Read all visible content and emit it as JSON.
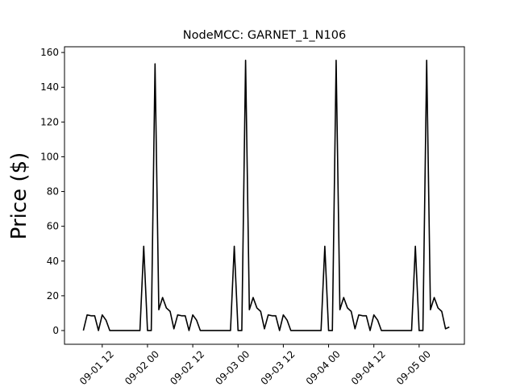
{
  "chart_data": {
    "type": "line",
    "title": "NodeMCC: GARNET_1_N106",
    "y_label": "Price ($)",
    "x": [
      "09-01 07",
      "09-01 08",
      "09-01 09",
      "09-01 10",
      "09-01 11",
      "09-01 12",
      "09-01 13",
      "09-01 14",
      "09-01 22",
      "09-01 23",
      "09-02 00",
      "09-02 01",
      "09-02 02",
      "09-02 03",
      "09-02 04",
      "09-02 05",
      "09-02 06",
      "09-02 07",
      "09-02 08",
      "09-02 09",
      "09-02 10",
      "09-02 11",
      "09-02 12",
      "09-02 13",
      "09-02 14",
      "09-02 22",
      "09-02 23",
      "09-03 00",
      "09-03 01",
      "09-03 02",
      "09-03 03",
      "09-03 04",
      "09-03 05",
      "09-03 06",
      "09-03 07",
      "09-03 08",
      "09-03 09",
      "09-03 10",
      "09-03 11",
      "09-03 12",
      "09-03 13",
      "09-03 14",
      "09-03 22",
      "09-03 23",
      "09-04 00",
      "09-04 01",
      "09-04 02",
      "09-04 03",
      "09-04 04",
      "09-04 05",
      "09-04 06",
      "09-04 07",
      "09-04 08",
      "09-04 09",
      "09-04 10",
      "09-04 11",
      "09-04 12",
      "09-04 13",
      "09-04 14",
      "09-04 22",
      "09-04 23",
      "09-05 00",
      "09-05 01",
      "09-05 02",
      "09-05 03",
      "09-05 04",
      "09-05 05",
      "09-05 06",
      "09-05 07",
      "09-05 08"
    ],
    "series": [
      {
        "color": "#000000",
        "values": [
          0,
          9,
          8.5,
          8.5,
          0,
          9,
          6,
          0,
          0,
          48.5,
          0,
          0,
          153.5,
          12,
          19,
          13,
          11,
          1,
          9,
          8.5,
          8.5,
          0,
          9,
          6,
          0,
          0,
          48.5,
          0,
          0,
          155.5,
          12,
          19,
          13,
          11,
          1,
          9,
          8.5,
          8.5,
          0,
          9,
          6,
          0,
          0,
          48.5,
          0,
          0,
          155.5,
          12,
          19,
          13,
          11,
          1,
          9,
          8.5,
          8.5,
          0,
          9,
          6,
          0,
          0,
          48.5,
          0,
          0,
          155.5,
          12,
          19,
          13,
          11,
          1,
          2
        ]
      }
    ],
    "xlim": [
      "09-01 02",
      "09-05 12"
    ],
    "xticks": [
      "09-01 12",
      "09-02 00",
      "09-02 12",
      "09-03 00",
      "09-03 12",
      "09-04 00",
      "09-04 12",
      "09-05 00"
    ],
    "ylim": [
      -7.9,
      163.3
    ],
    "yticks": [
      0,
      20,
      40,
      60,
      80,
      100,
      120,
      140,
      160
    ]
  }
}
